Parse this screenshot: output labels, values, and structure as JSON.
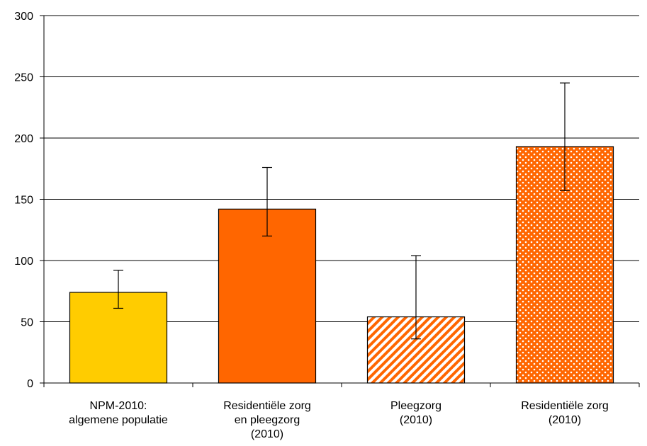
{
  "chart_data": {
    "type": "bar",
    "categories": [
      [
        "NPM-2010:",
        "algemene populatie"
      ],
      [
        "Residentiële zorg",
        "en pleegzorg",
        "(2010)"
      ],
      [
        "Pleegzorg",
        "(2010)"
      ],
      [
        "Residentiële zorg",
        "(2010)"
      ]
    ],
    "values": [
      74,
      142,
      54,
      193
    ],
    "error_low": [
      61,
      120,
      36,
      157
    ],
    "error_high": [
      92,
      176,
      104,
      245
    ],
    "ylim": [
      0,
      300
    ],
    "yticks": [
      "0",
      "50",
      "100",
      "150",
      "200",
      "250",
      "300"
    ],
    "ytick_values": [
      0,
      50,
      100,
      150,
      200,
      250,
      300
    ],
    "grid": true,
    "title": "",
    "xlabel": "",
    "ylabel": "",
    "bar_styles": [
      {
        "fill": "#FFCC00",
        "pattern": "solid"
      },
      {
        "fill": "#FF6600",
        "pattern": "solid"
      },
      {
        "fill": "#FF6600",
        "pattern": "diagonal-stripes"
      },
      {
        "fill": "#FF6600",
        "pattern": "dots"
      }
    ]
  }
}
